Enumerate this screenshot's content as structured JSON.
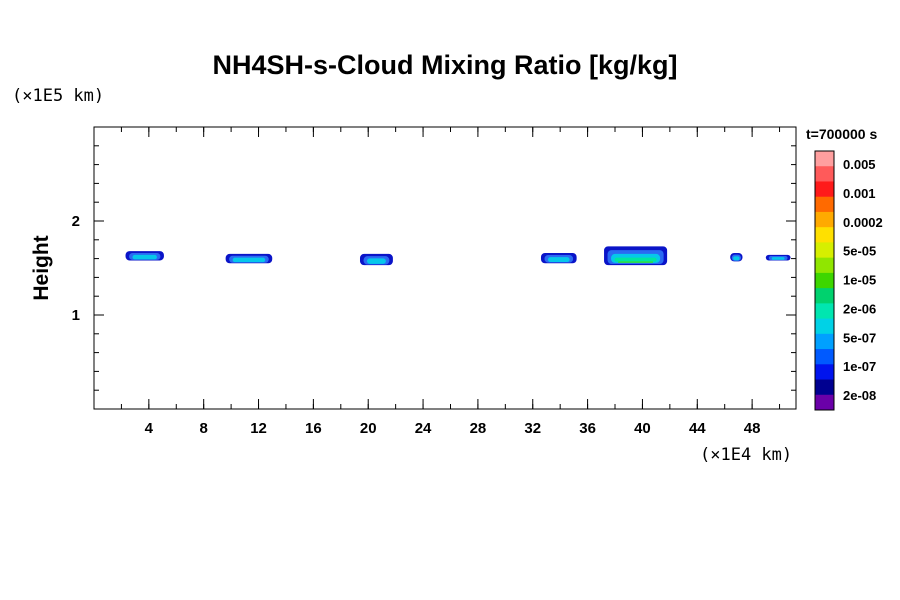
{
  "chart_data": {
    "type": "heatmap",
    "title": "NH4SH-s-Cloud Mixing Ratio [kg/kg]",
    "xlabel": "",
    "ylabel": "Height",
    "x_unit": "(×1E4 km)",
    "y_unit": "(×1E5 km)",
    "time_label": "t=700000 s",
    "xlim": [
      0,
      51.2
    ],
    "ylim": [
      0,
      3.0
    ],
    "x_ticks": [
      4,
      8,
      12,
      16,
      20,
      24,
      28,
      32,
      36,
      40,
      44,
      48
    ],
    "y_ticks": [
      1,
      2
    ],
    "x_minor_step": 2,
    "y_minor_step": 0.2,
    "colorbar": {
      "labels": [
        "0.005",
        "0.001",
        "0.0002",
        "5e-05",
        "1e-05",
        "2e-06",
        "5e-07",
        "1e-07",
        "2e-08"
      ],
      "colors_top_to_bottom": [
        "#ff9f9f",
        "#ff5a5a",
        "#ff1a1a",
        "#ff6a00",
        "#ffaa00",
        "#ffe000",
        "#d6ef00",
        "#90e600",
        "#3dd600",
        "#00d26e",
        "#00e6b0",
        "#00d2e6",
        "#00a0ff",
        "#005aff",
        "#0014ee",
        "#000090",
        "#6a00a8"
      ]
    },
    "cloud_patches": [
      {
        "x_start": 2.3,
        "x_end": 5.1,
        "y_bottom": 1.58,
        "y_top": 1.68,
        "max_level": "5e-07"
      },
      {
        "x_start": 9.6,
        "x_end": 13.0,
        "y_bottom": 1.55,
        "y_top": 1.65,
        "max_level": "5e-07"
      },
      {
        "x_start": 19.4,
        "x_end": 21.8,
        "y_bottom": 1.53,
        "y_top": 1.65,
        "max_level": "5e-07"
      },
      {
        "x_start": 32.6,
        "x_end": 35.2,
        "y_bottom": 1.55,
        "y_top": 1.66,
        "max_level": "5e-07"
      },
      {
        "x_start": 37.2,
        "x_end": 41.8,
        "y_bottom": 1.53,
        "y_top": 1.73,
        "max_level": "1e-05"
      },
      {
        "x_start": 46.4,
        "x_end": 47.3,
        "y_bottom": 1.57,
        "y_top": 1.66,
        "max_level": "1e-07"
      },
      {
        "x_start": 49.0,
        "x_end": 50.8,
        "y_bottom": 1.58,
        "y_top": 1.64,
        "max_level": "1e-07"
      }
    ]
  }
}
